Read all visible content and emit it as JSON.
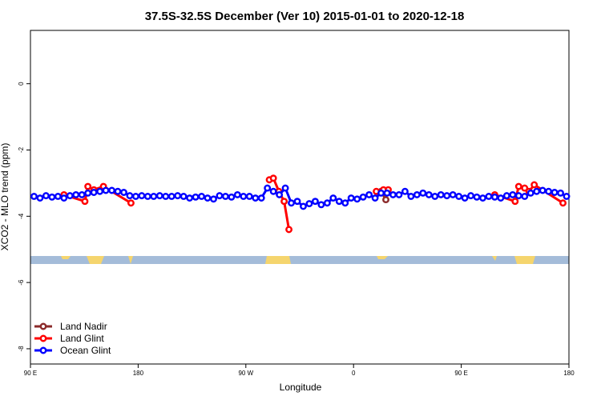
{
  "chart_data": {
    "type": "line",
    "title": "37.5S-32.5S December (Ver 10)   2015-01-01 to 2020-12-18",
    "x_label": "Longitude",
    "y_label": "XCO2 - MLO trend (ppm)",
    "xlim": [
      90,
      540
    ],
    "ylim": [
      -8.46,
      1.61
    ],
    "xticks": [
      {
        "value": 90,
        "label": "90 E"
      },
      {
        "value": 180,
        "label": "180"
      },
      {
        "value": 270,
        "label": "90 W"
      },
      {
        "value": 360,
        "label": "0"
      },
      {
        "value": 450,
        "label": "90 E"
      },
      {
        "value": 540,
        "label": "180"
      }
    ],
    "yticks": [
      0,
      -2,
      -4,
      -6,
      -8
    ],
    "legend": "bottom-left",
    "series": [
      {
        "name": "Land Nadir",
        "color": "#8b2a2a",
        "x": [
          383,
          387
        ],
        "values": [
          -3.25,
          -3.5
        ]
      },
      {
        "name": "Land Glint",
        "color": "#ff0000",
        "x": [
          118,
          135.5,
          138,
          143,
          151,
          174,
          null,
          289.6,
          293,
          297.6,
          302,
          306,
          null,
          379,
          385,
          389,
          null,
          478,
          495,
          498,
          503,
          506.6,
          511,
          535
        ],
        "values": [
          -3.35,
          -3.55,
          -3.1,
          -3.2,
          -3.1,
          -3.6,
          null,
          -2.9,
          -2.85,
          -3.25,
          -3.55,
          -4.4,
          null,
          -3.25,
          -3.2,
          -3.2,
          null,
          -3.35,
          -3.55,
          -3.1,
          -3.15,
          -3.25,
          -3.05,
          -3.6
        ]
      },
      {
        "name": "Ocean Glint",
        "color": "#0000ff",
        "x": [
          93,
          98,
          103,
          108,
          113,
          118,
          123,
          128,
          133,
          138,
          143,
          148,
          153,
          158,
          163,
          168,
          173,
          178,
          183,
          188,
          193,
          198,
          203,
          208,
          213,
          218,
          223,
          228,
          233,
          238,
          243,
          248,
          253,
          258,
          263,
          268,
          273,
          278,
          283,
          288,
          293,
          298,
          303,
          308,
          313,
          318,
          323,
          328,
          333,
          338,
          343,
          348,
          353,
          358,
          363,
          368,
          373,
          378,
          383,
          388,
          393,
          398,
          403,
          408,
          413,
          418,
          423,
          428,
          433,
          438,
          443,
          448,
          453,
          458,
          463,
          468,
          473,
          478,
          483,
          488,
          493,
          498,
          503,
          508,
          513,
          518,
          523,
          528,
          533,
          538
        ],
        "values": [
          -3.4,
          -3.45,
          -3.38,
          -3.42,
          -3.4,
          -3.45,
          -3.38,
          -3.35,
          -3.35,
          -3.3,
          -3.28,
          -3.25,
          -3.22,
          -3.22,
          -3.25,
          -3.28,
          -3.38,
          -3.4,
          -3.38,
          -3.4,
          -3.4,
          -3.38,
          -3.4,
          -3.4,
          -3.38,
          -3.4,
          -3.45,
          -3.42,
          -3.4,
          -3.45,
          -3.48,
          -3.38,
          -3.4,
          -3.42,
          -3.35,
          -3.4,
          -3.4,
          -3.45,
          -3.45,
          -3.15,
          -3.25,
          -3.35,
          -3.15,
          -3.6,
          -3.55,
          -3.7,
          -3.62,
          -3.55,
          -3.65,
          -3.6,
          -3.45,
          -3.55,
          -3.6,
          -3.45,
          -3.48,
          -3.42,
          -3.35,
          -3.45,
          -3.3,
          -3.3,
          -3.35,
          -3.35,
          -3.25,
          -3.4,
          -3.35,
          -3.3,
          -3.35,
          -3.4,
          -3.35,
          -3.38,
          -3.35,
          -3.4,
          -3.45,
          -3.38,
          -3.42,
          -3.45,
          -3.4,
          -3.42,
          -3.45,
          -3.38,
          -3.35,
          -3.38,
          -3.4,
          -3.3,
          -3.25,
          -3.22,
          -3.25,
          -3.28,
          -3.3,
          -3.4
        ]
      }
    ]
  }
}
